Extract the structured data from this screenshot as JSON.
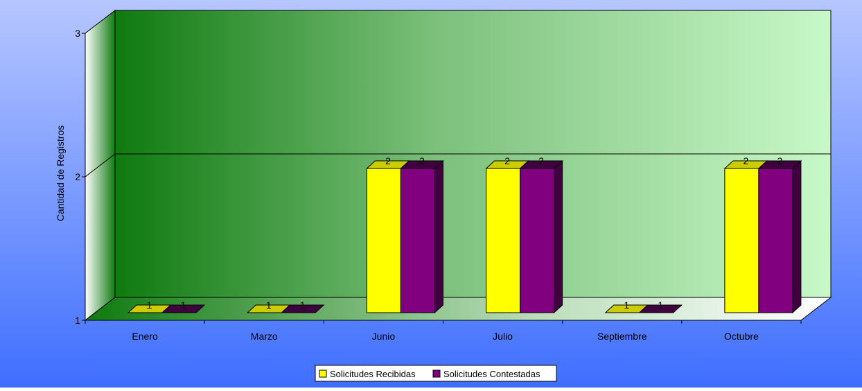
{
  "chart_data": {
    "type": "bar",
    "title": "",
    "xlabel": "",
    "ylabel": "Cantidad de Registros",
    "ylim": [
      1,
      3
    ],
    "yticks": [
      "1",
      "2",
      "3"
    ],
    "categories": [
      "Enero",
      "Marzo",
      "Junio",
      "Julio",
      "Septiembre",
      "Octubre"
    ],
    "series": [
      {
        "name": "Solicitudes Recibidas",
        "values": [
          1,
          1,
          2,
          2,
          1,
          2
        ],
        "labels": [
          "1",
          "1",
          "2",
          "2",
          "1",
          "2"
        ],
        "color": "#FFFF00",
        "side_color": "#CCCC00"
      },
      {
        "name": "Solicitudes Contestadas",
        "values": [
          1,
          1,
          2,
          2,
          1,
          2
        ],
        "labels": [
          "1",
          "1",
          "2",
          "2",
          "1",
          "2"
        ],
        "color": "#800080",
        "side_color": "#400040"
      }
    ],
    "grid": true,
    "legend_position": "bottom-center",
    "background_colors": [
      "#3f6fff",
      "#b6c6ff"
    ],
    "wall_colors": [
      "#0f7a0f",
      "#c8f8c8"
    ]
  }
}
